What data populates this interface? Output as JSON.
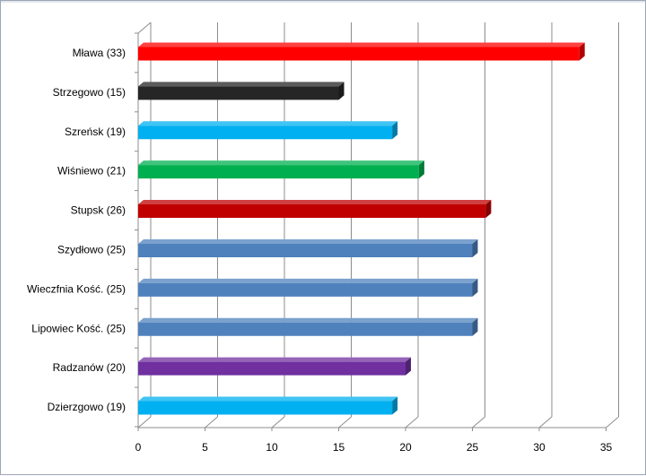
{
  "chart_data": {
    "type": "bar",
    "orientation": "horizontal",
    "style": "3d",
    "title": "",
    "xlabel": "",
    "ylabel": "",
    "categories": [
      "Mława (33)",
      "Strzegowo (15)",
      "Szreńsk (19)",
      "Wiśniewo (21)",
      "Stupsk (26)",
      "Szydłowo (25)",
      "Wieczfnia Kość. (25)",
      "Lipowiec Kość. (25)",
      "Radzanów (20)",
      "Dzierzgowo (19)"
    ],
    "values": [
      33,
      15,
      19,
      21,
      26,
      25,
      25,
      25,
      20,
      19
    ],
    "colors": [
      "#ff0000",
      "#262626",
      "#00b0f0",
      "#00b050",
      "#c00000",
      "#4f81bd",
      "#4f81bd",
      "#4f81bd",
      "#7030a0",
      "#00b0f0"
    ],
    "xlim": [
      0,
      35
    ],
    "xticks": [
      "0",
      "5",
      "10",
      "15",
      "20",
      "25",
      "30",
      "35"
    ],
    "grid": "vertical",
    "legend": "none"
  }
}
